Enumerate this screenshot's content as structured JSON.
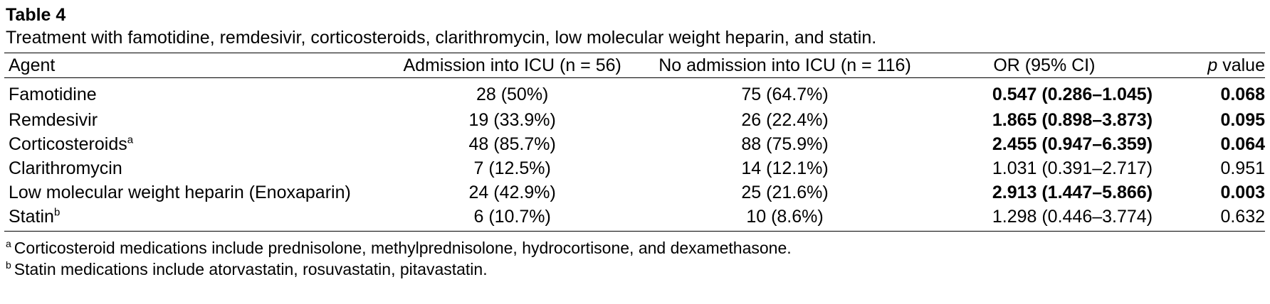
{
  "table_label": "Table 4",
  "caption": "Treatment with famotidine, remdesivir, corticosteroids, clarithromycin, low molecular weight heparin, and statin.",
  "headers": {
    "agent": "Agent",
    "icu": "Admission into ICU (n = 56)",
    "no_icu": "No admission into ICU (n = 116)",
    "or": "OR (95% CI)",
    "p_italic": "p",
    "p_rest": " value"
  },
  "rows": [
    {
      "agent": "Famotidine",
      "mark": "",
      "icu": "28 (50%)",
      "no_icu": "75 (64.7%)",
      "or": "0.547 (0.286–1.045)",
      "p": "0.068"
    },
    {
      "agent": "Remdesivir",
      "mark": "",
      "icu": "19 (33.9%)",
      "no_icu": "26 (22.4%)",
      "or": "1.865 (0.898–3.873)",
      "p": "0.095"
    },
    {
      "agent": "Corticosteroids",
      "mark": "a",
      "icu": "48 (85.7%)",
      "no_icu": "88 (75.9%)",
      "or": "2.455 (0.947–6.359)",
      "p": "0.064"
    },
    {
      "agent": "Clarithromycin",
      "mark": "",
      "icu": "7 (12.5%)",
      "no_icu": "14 (12.1%)",
      "or": "1.031 (0.391–2.717)",
      "p": "0.951"
    },
    {
      "agent": "Low molecular weight heparin (Enoxaparin)",
      "mark": "",
      "icu": "24 (42.9%)",
      "no_icu": "25 (21.6%)",
      "or": "2.913 (1.447–5.866)",
      "p": "0.003"
    },
    {
      "agent": "Statin",
      "mark": "b",
      "icu": "6 (10.7%)",
      "no_icu": "10 (8.6%)",
      "or": "1.298 (0.446–3.774)",
      "p": "0.632"
    }
  ],
  "footnotes": [
    {
      "mark": "a",
      "text": "Corticosteroid medications include prednisolone, methylprednisolone, hydrocortisone, and dexamethasone."
    },
    {
      "mark": "b",
      "text": "Statin medications include atorvastatin, rosuvastatin, pitavastatin."
    }
  ]
}
